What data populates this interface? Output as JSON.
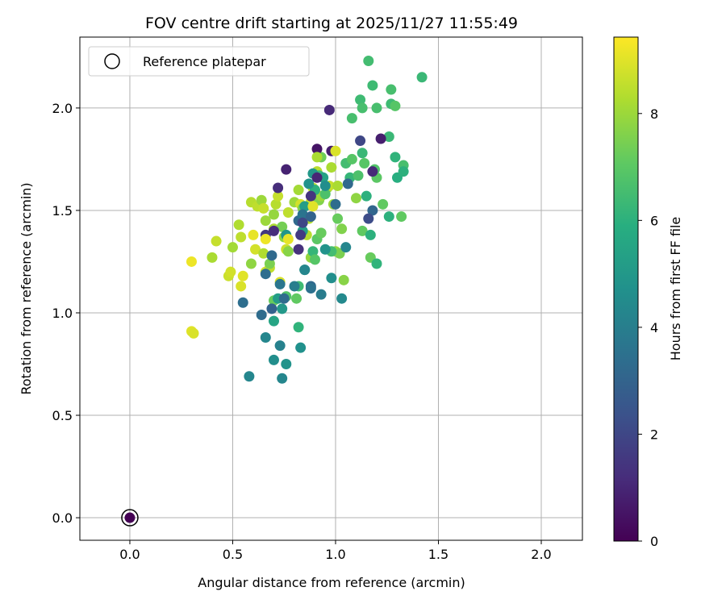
{
  "chart_data": {
    "type": "scatter",
    "title": "FOV centre drift starting at 2025/11/27 11:55:49",
    "xlabel": "Angular distance from reference (arcmin)",
    "ylabel": "Rotation from reference (arcmin)",
    "xlim": [
      -0.243,
      2.2
    ],
    "ylim": [
      -0.11,
      2.346
    ],
    "xticks": [
      0.0,
      0.5,
      1.0,
      1.5,
      2.0
    ],
    "xtick_labels": [
      "0.0",
      "0.5",
      "1.0",
      "1.5",
      "2.0"
    ],
    "yticks": [
      0.0,
      0.5,
      1.0,
      1.5,
      2.0
    ],
    "ytick_labels": [
      "0.0",
      "0.5",
      "1.0",
      "1.5",
      "2.0"
    ],
    "grid": true,
    "legend": {
      "placement": "top-left",
      "entries": [
        "Reference platepar"
      ]
    },
    "reference_point": {
      "x": 0.0,
      "y": 0.0,
      "hours": 0
    },
    "colorbar": {
      "label": "Hours from first FF file",
      "range": [
        0,
        9.43
      ],
      "ticks": [
        0,
        2,
        4,
        6,
        8
      ],
      "tick_labels": [
        "0",
        "2",
        "4",
        "6",
        "8"
      ],
      "colormap": "viridis"
    },
    "point_columns": [
      "x",
      "y",
      "hours"
    ],
    "points": [
      [
        0.3,
        1.25,
        9.2
      ],
      [
        0.3,
        0.91,
        9.0
      ],
      [
        0.31,
        0.9,
        8.9
      ],
      [
        0.4,
        1.27,
        8.2
      ],
      [
        0.42,
        1.35,
        8.6
      ],
      [
        0.48,
        1.18,
        8.7
      ],
      [
        0.49,
        1.2,
        8.8
      ],
      [
        0.5,
        1.32,
        8.1
      ],
      [
        0.53,
        1.43,
        8.3
      ],
      [
        0.54,
        1.13,
        8.9
      ],
      [
        0.54,
        1.37,
        8.5
      ],
      [
        0.55,
        1.18,
        9.0
      ],
      [
        0.59,
        1.24,
        7.8
      ],
      [
        0.59,
        1.54,
        8.4
      ],
      [
        0.6,
        1.38,
        9.1
      ],
      [
        0.61,
        1.31,
        8.8
      ],
      [
        0.62,
        1.52,
        8.5
      ],
      [
        0.64,
        1.55,
        8.0
      ],
      [
        0.65,
        1.51,
        8.6
      ],
      [
        0.65,
        1.29,
        8.3
      ],
      [
        0.66,
        1.45,
        8.0
      ],
      [
        0.66,
        1.2,
        8.8
      ],
      [
        0.68,
        1.22,
        8.5
      ],
      [
        0.68,
        1.24,
        7.5
      ],
      [
        0.7,
        1.41,
        8.2
      ],
      [
        0.7,
        1.48,
        7.9
      ],
      [
        0.71,
        1.53,
        8.4
      ],
      [
        0.72,
        1.57,
        8.6
      ],
      [
        0.73,
        1.15,
        8.9
      ],
      [
        0.74,
        1.42,
        7.4
      ],
      [
        0.75,
        1.37,
        7.8
      ],
      [
        0.76,
        1.31,
        8.7
      ],
      [
        0.77,
        1.49,
        8.5
      ],
      [
        0.77,
        1.3,
        7.7
      ],
      [
        0.8,
        1.54,
        8.0
      ],
      [
        0.82,
        1.6,
        8.1
      ],
      [
        0.83,
        1.53,
        8.8
      ],
      [
        0.84,
        1.51,
        7.6
      ],
      [
        0.86,
        1.38,
        8.4
      ],
      [
        0.87,
        1.46,
        8.3
      ],
      [
        0.88,
        1.54,
        8.7
      ],
      [
        0.88,
        1.27,
        7.9
      ],
      [
        0.89,
        1.61,
        8.6
      ],
      [
        0.91,
        1.69,
        8.4
      ],
      [
        0.92,
        1.55,
        7.6
      ],
      [
        0.93,
        1.57,
        8.0
      ],
      [
        0.96,
        1.61,
        7.8
      ],
      [
        0.97,
        1.62,
        8.6
      ],
      [
        0.98,
        1.71,
        8.2
      ],
      [
        0.99,
        1.53,
        8.0
      ],
      [
        1.01,
        1.62,
        8.2
      ],
      [
        1.03,
        1.41,
        7.6
      ],
      [
        1.04,
        1.16,
        7.7
      ],
      [
        1.1,
        1.56,
        7.8
      ],
      [
        1.0,
        1.3,
        7.9
      ],
      [
        1.02,
        1.29,
        7.5
      ],
      [
        1.01,
        1.46,
        7.2
      ],
      [
        0.7,
        1.06,
        7.2
      ],
      [
        0.76,
        1.08,
        6.8
      ],
      [
        0.81,
        1.07,
        7.1
      ],
      [
        0.82,
        1.13,
        6.4
      ],
      [
        0.89,
        1.3,
        6.2
      ],
      [
        0.91,
        1.36,
        7.0
      ],
      [
        0.93,
        1.39,
        7.2
      ],
      [
        0.9,
        1.26,
        6.9
      ],
      [
        0.85,
        1.21,
        6.1
      ],
      [
        0.9,
        1.6,
        6.0
      ],
      [
        0.92,
        1.67,
        6.3
      ],
      [
        0.93,
        1.76,
        7.3
      ],
      [
        0.95,
        1.58,
        6.7
      ],
      [
        0.98,
        1.3,
        6.5
      ],
      [
        1.05,
        1.73,
        6.5
      ],
      [
        1.07,
        1.66,
        6.2
      ],
      [
        1.08,
        1.75,
        6.9
      ],
      [
        1.08,
        1.95,
        6.6
      ],
      [
        1.11,
        1.67,
        6.7
      ],
      [
        1.12,
        2.04,
        6.4
      ],
      [
        1.13,
        1.4,
        7.1
      ],
      [
        1.13,
        1.78,
        6.3
      ],
      [
        1.13,
        2.0,
        6.6
      ],
      [
        1.14,
        1.73,
        6.9
      ],
      [
        1.15,
        1.57,
        6.0
      ],
      [
        1.16,
        2.23,
        6.5
      ],
      [
        1.17,
        1.27,
        7.2
      ],
      [
        1.18,
        2.11,
        6.4
      ],
      [
        1.19,
        1.7,
        6.8
      ],
      [
        1.2,
        1.66,
        7.0
      ],
      [
        1.2,
        2.0,
        6.6
      ],
      [
        1.2,
        1.24,
        6.1
      ],
      [
        1.23,
        1.53,
        7.1
      ],
      [
        1.26,
        1.86,
        6.3
      ],
      [
        1.26,
        1.47,
        6.0
      ],
      [
        1.27,
        2.02,
        6.4
      ],
      [
        1.27,
        2.09,
        6.6
      ],
      [
        1.29,
        1.76,
        6.1
      ],
      [
        1.29,
        2.01,
        6.9
      ],
      [
        1.3,
        1.66,
        5.9
      ],
      [
        1.32,
        1.47,
        7.1
      ],
      [
        1.33,
        1.72,
        6.6
      ],
      [
        1.33,
        1.69,
        6.0
      ],
      [
        1.42,
        2.15,
        6.3
      ],
      [
        0.74,
        1.02,
        5.0
      ],
      [
        0.72,
        1.07,
        5.2
      ],
      [
        0.7,
        0.96,
        5.5
      ],
      [
        0.82,
        0.93,
        6.1
      ],
      [
        0.58,
        0.69,
        4.3
      ],
      [
        0.55,
        1.05,
        3.4
      ],
      [
        0.64,
        0.99,
        3.3
      ],
      [
        0.66,
        0.88,
        4.3
      ],
      [
        0.69,
        1.02,
        3.0
      ],
      [
        0.7,
        0.77,
        4.6
      ],
      [
        0.73,
        0.84,
        4.1
      ],
      [
        0.74,
        0.68,
        4.3
      ],
      [
        0.76,
        0.75,
        4.8
      ],
      [
        0.83,
        0.83,
        4.7
      ],
      [
        0.69,
        1.28,
        3.2
      ],
      [
        0.66,
        1.19,
        3.4
      ],
      [
        0.73,
        1.14,
        3.7
      ],
      [
        0.75,
        1.07,
        3.3
      ],
      [
        0.8,
        1.13,
        4.0
      ],
      [
        0.85,
        1.21,
        4.3
      ],
      [
        0.88,
        1.13,
        3.2
      ],
      [
        0.88,
        1.12,
        3.5
      ],
      [
        0.93,
        1.09,
        3.9
      ],
      [
        0.98,
        1.17,
        4.6
      ],
      [
        1.03,
        1.07,
        4.4
      ],
      [
        1.05,
        1.32,
        4.3
      ],
      [
        0.95,
        1.31,
        4.8
      ],
      [
        0.85,
        1.52,
        5.2
      ],
      [
        0.82,
        1.45,
        3.2
      ],
      [
        0.84,
        1.48,
        3.6
      ],
      [
        0.88,
        1.47,
        3.0
      ],
      [
        0.87,
        1.63,
        4.8
      ],
      [
        0.94,
        1.66,
        5.4
      ],
      [
        1.0,
        1.53,
        3.3
      ],
      [
        1.06,
        1.63,
        3.2
      ],
      [
        1.18,
        1.5,
        3.1
      ],
      [
        1.17,
        1.38,
        6.0
      ],
      [
        0.76,
        1.38,
        4.9
      ],
      [
        0.84,
        1.4,
        5.3
      ],
      [
        0.89,
        1.68,
        5.0
      ],
      [
        0.95,
        1.62,
        4.6
      ],
      [
        0.72,
        1.61,
        1.2
      ],
      [
        0.76,
        1.7,
        0.9
      ],
      [
        0.82,
        1.31,
        1.3
      ],
      [
        0.83,
        1.38,
        1.6
      ],
      [
        0.84,
        1.44,
        2.0
      ],
      [
        0.88,
        1.57,
        1.4
      ],
      [
        0.91,
        1.8,
        0.5
      ],
      [
        0.91,
        1.66,
        1.0
      ],
      [
        0.97,
        1.99,
        1.1
      ],
      [
        0.98,
        1.79,
        0.8
      ],
      [
        1.12,
        1.84,
        2.0
      ],
      [
        1.16,
        1.46,
        2.2
      ],
      [
        1.18,
        1.69,
        1.1
      ],
      [
        1.22,
        1.85,
        0.8
      ],
      [
        0.7,
        1.4,
        1.2
      ],
      [
        0.66,
        1.38,
        1.5
      ],
      [
        0.66,
        1.36,
        9.2
      ],
      [
        0.77,
        1.36,
        9.1
      ],
      [
        0.89,
        1.52,
        9.0
      ],
      [
        0.91,
        1.76,
        8.2
      ],
      [
        1.0,
        1.79,
        8.9
      ]
    ]
  }
}
